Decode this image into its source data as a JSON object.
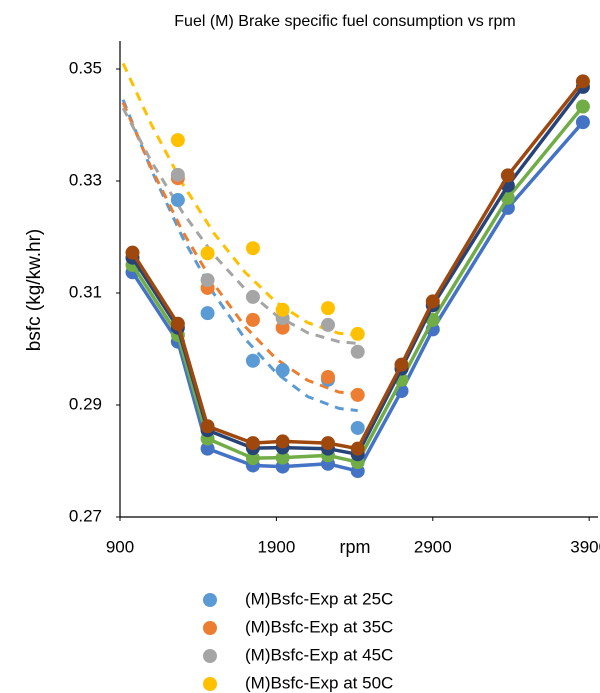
{
  "chart_data": {
    "type": "line",
    "title": "Fuel (M) Brake specific fuel consumption vs rpm",
    "x_label": "rpm",
    "y_label": "bsfc (kg/kw.hr)",
    "xlim": [
      900,
      3950
    ],
    "xticks": [
      900,
      1900,
      2900,
      3900
    ],
    "ylim": [
      0.27,
      0.355
    ],
    "yticks": [
      0.27,
      0.29,
      0.31,
      0.33,
      0.35
    ],
    "grid": false,
    "legend": "bottom",
    "series": [
      {
        "style": "dashed",
        "color": "#5b9bd5",
        "x": [
          920,
          1100,
          1300,
          1500,
          1700,
          1900,
          2100,
          2300,
          2420
        ],
        "values": [
          0.3445,
          0.332,
          0.3199,
          0.3099,
          0.3018,
          0.2957,
          0.2915,
          0.2894,
          0.289
        ]
      },
      {
        "style": "dashed",
        "color": "#ed7d31",
        "x": [
          920,
          1100,
          1300,
          1500,
          1700,
          1900,
          2100,
          2300,
          2420
        ],
        "values": [
          0.344,
          0.3323,
          0.321,
          0.3116,
          0.304,
          0.2982,
          0.2944,
          0.2923,
          0.292
        ]
      },
      {
        "style": "dashed",
        "color": "#a5a5a5",
        "x": [
          920,
          1100,
          1300,
          1500,
          1700,
          1900,
          2100,
          2300,
          2420
        ],
        "values": [
          0.343,
          0.3335,
          0.3244,
          0.3168,
          0.3107,
          0.306,
          0.3029,
          0.3013,
          0.301
        ]
      },
      {
        "style": "dashed",
        "color": "#ffc000",
        "x": [
          920,
          1100,
          1300,
          1500,
          1700,
          1900,
          2100,
          2300,
          2420
        ],
        "values": [
          0.351,
          0.3401,
          0.3295,
          0.3207,
          0.3137,
          0.3083,
          0.3047,
          0.3028,
          0.3025
        ]
      },
      {
        "style": "scatter",
        "name": "(M)Bsfc-Exp at 25C",
        "color": "#5b9bd5",
        "x": [
          1270,
          1460,
          1750,
          1940,
          2230,
          2420
        ],
        "values": [
          0.3266,
          0.3064,
          0.2979,
          0.2962,
          0.2945,
          0.2859
        ]
      },
      {
        "style": "scatter",
        "name": "(M)Bsfc-Exp at 35C",
        "color": "#ed7d31",
        "x": [
          1270,
          1460,
          1750,
          1940,
          2230,
          2420
        ],
        "values": [
          0.3305,
          0.3109,
          0.3052,
          0.3038,
          0.295,
          0.2918
        ]
      },
      {
        "style": "scatter",
        "name": "(M)Bsfc-Exp at 45C",
        "color": "#a5a5a5",
        "x": [
          1270,
          1460,
          1750,
          1940,
          2230,
          2420
        ],
        "values": [
          0.3311,
          0.3123,
          0.3093,
          0.3055,
          0.3043,
          0.2995
        ]
      },
      {
        "style": "scatter",
        "name": "(M)Bsfc-Exp at 50C",
        "color": "#ffc000",
        "x": [
          1270,
          1460,
          1750,
          1940,
          2230,
          2420
        ],
        "values": [
          0.3373,
          0.3171,
          0.318,
          0.307,
          0.3073,
          0.3027
        ]
      },
      {
        "style": "line-marker",
        "color": "#4472c4",
        "x": [
          980,
          1270,
          1460,
          1750,
          1940,
          2230,
          2420,
          2700,
          2900,
          3380,
          3860
        ],
        "values": [
          0.3137,
          0.3013,
          0.2822,
          0.2792,
          0.279,
          0.2795,
          0.2782,
          0.2925,
          0.3035,
          0.3252,
          0.3405
        ]
      },
      {
        "style": "line-marker",
        "color": "#70ad47",
        "x": [
          980,
          1270,
          1460,
          1750,
          1940,
          2230,
          2420,
          2700,
          2900,
          3380,
          3860
        ],
        "values": [
          0.315,
          0.3025,
          0.284,
          0.2805,
          0.2806,
          0.281,
          0.2798,
          0.2945,
          0.3052,
          0.327,
          0.3433
        ]
      },
      {
        "style": "line-marker",
        "color": "#264478",
        "x": [
          980,
          1270,
          1460,
          1750,
          1940,
          2230,
          2420,
          2700,
          2900,
          3380,
          3860
        ],
        "values": [
          0.3163,
          0.3038,
          0.2855,
          0.2823,
          0.2824,
          0.2822,
          0.2812,
          0.2965,
          0.3078,
          0.3292,
          0.3468
        ]
      },
      {
        "style": "line-marker",
        "color": "#9e480e",
        "x": [
          980,
          1270,
          1460,
          1750,
          1940,
          2230,
          2420,
          2700,
          2900,
          3380,
          3860
        ],
        "values": [
          0.3172,
          0.3045,
          0.2862,
          0.2832,
          0.2835,
          0.2832,
          0.2822,
          0.2972,
          0.3085,
          0.331,
          0.3478
        ]
      }
    ]
  }
}
